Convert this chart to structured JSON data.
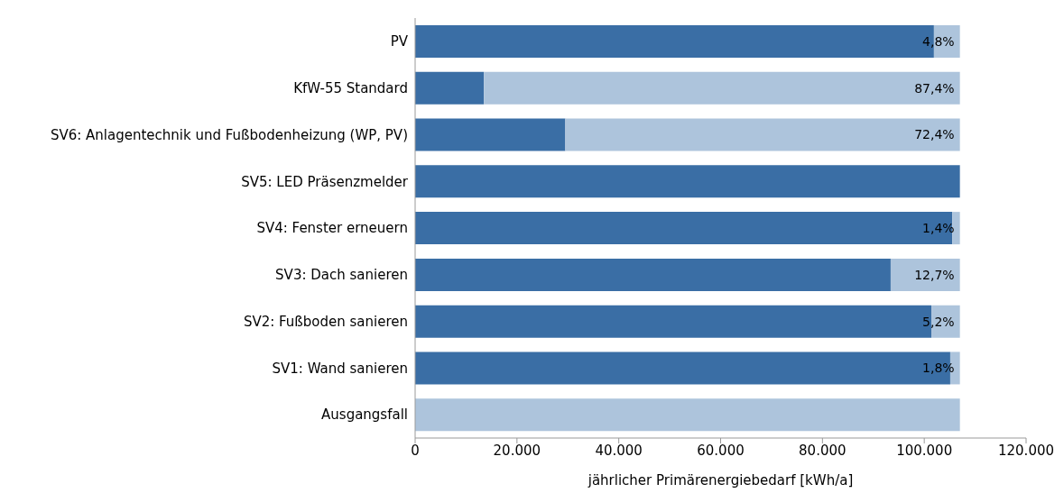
{
  "chart_data": {
    "type": "bar",
    "orientation": "horizontal",
    "stacked": true,
    "xlabel": "jährlicher Primärenergiebedarf [kWh/a]",
    "categories": [
      "PV",
      "KfW-55 Standard",
      "SV6: Anlagentechnik und Fußbodenheizung (WP, PV)",
      "SV5: LED Präsenzmelder",
      "SV4: Fenster erneuern",
      "SV3: Dach sanieren",
      "SV2: Fußboden sanieren",
      "SV1: Wand sanieren",
      "Ausgangsfall"
    ],
    "series": [
      {
        "color": "#3a6ea5",
        "values": [
          101900,
          13500,
          29500,
          107000,
          105500,
          93400,
          101400,
          105100,
          0
        ]
      },
      {
        "color": "#adc4dc",
        "values": [
          5100,
          93500,
          77500,
          0,
          1500,
          13600,
          5600,
          1900,
          107000
        ]
      }
    ],
    "annotations": [
      {
        "text": "4,8%",
        "y": "PV"
      },
      {
        "text": "87,4%",
        "y": "KfW-55 Standard"
      },
      {
        "text": "72,4%",
        "y": "SV6: Anlagentechnik und Fußbodenheizung (WP, PV)"
      },
      {
        "text": "1,4%",
        "y": "SV4: Fenster erneuern"
      },
      {
        "text": "12,7%",
        "y": "SV3: Dach sanieren"
      },
      {
        "text": "5,2%",
        "y": "SV2: Fußboden sanieren"
      },
      {
        "text": "1,8%",
        "y": "SV1: Wand sanieren"
      }
    ],
    "xlim": [
      0,
      120000
    ],
    "xticks": [
      0,
      {
        "value": 20000,
        "label": "20.000"
      },
      {
        "value": 40000,
        "label": "40.000"
      },
      {
        "value": 60000,
        "label": "60.000"
      },
      {
        "value": 80000,
        "label": "80.000"
      },
      {
        "value": 100000,
        "label": "100.000"
      },
      {
        "value": 120000,
        "label": "120.000"
      }
    ],
    "grid": false,
    "legend": false
  }
}
